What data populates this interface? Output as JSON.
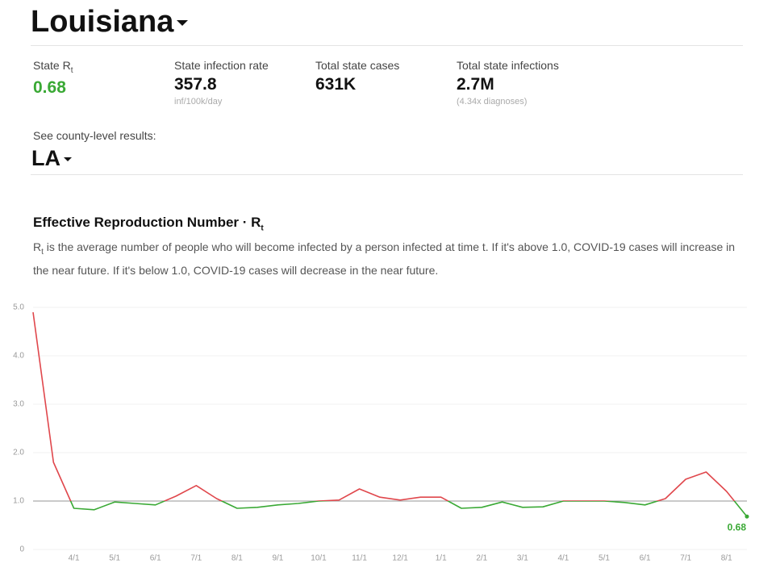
{
  "header": {
    "title": "Louisiana",
    "stats": [
      {
        "label": "State R",
        "sub": "t",
        "value": "0.68"
      },
      {
        "label": "State infection rate",
        "value": "357.8",
        "note": "inf/100k/day"
      },
      {
        "label": "Total state cases",
        "value": "631K"
      },
      {
        "label": "Total state infections",
        "value": "2.7M",
        "note": "(4.34x diagnoses)"
      }
    ],
    "county_prompt": "See county-level results:",
    "county": "LA"
  },
  "chart_data": {
    "type": "line",
    "title": "Effective Reproduction Number · R",
    "title_sub": "t",
    "description_symbol": "R",
    "description_sub": "t",
    "description": " is the average number of people who will become infected by a person infected at time t. If it's above 1.0, COVID-19 cases will increase in the near future. If it's below 1.0, COVID-19 cases will decrease in the near future.",
    "categories": [
      null,
      null,
      "4/1",
      null,
      "5/1",
      null,
      "6/1",
      null,
      "7/1",
      null,
      "8/1",
      null,
      "9/1",
      null,
      "10/1",
      null,
      "11/1",
      null,
      "12/1",
      null,
      "1/1",
      null,
      "2/1",
      null,
      "3/1",
      null,
      "4/1",
      null,
      "5/1",
      null,
      "6/1",
      null,
      "7/1",
      null,
      "8/1",
      null
    ],
    "series": [
      {
        "name": "Rt",
        "values": [
          4.9,
          1.8,
          0.85,
          0.82,
          0.98,
          0.95,
          0.92,
          1.1,
          1.32,
          1.05,
          0.85,
          0.87,
          0.92,
          0.95,
          1.0,
          1.02,
          1.25,
          1.08,
          1.02,
          1.08,
          1.08,
          0.85,
          0.87,
          0.98,
          0.87,
          0.88,
          1.0,
          1.0,
          1.0,
          0.97,
          0.92,
          1.05,
          1.45,
          1.6,
          1.2,
          0.68
        ]
      }
    ],
    "above_color": "#e0474c",
    "below_color": "#3aa935",
    "threshold": 1,
    "ylim": [
      0,
      5.5
    ],
    "yticks": [
      0,
      {
        "value": 1,
        "label": "1.0"
      },
      {
        "value": 2,
        "label": "2.0"
      },
      {
        "value": 3,
        "label": "3.0"
      },
      {
        "value": 4,
        "label": "4.0"
      },
      {
        "value": 5,
        "label": "5.0"
      }
    ],
    "grid": true
  }
}
